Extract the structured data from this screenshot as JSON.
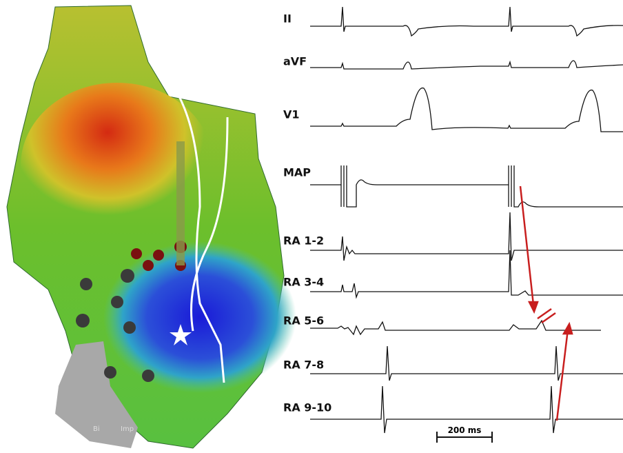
{
  "map": {
    "labels": [
      "Bi",
      "Imp"
    ]
  },
  "traces": {
    "labels": [
      "II",
      "aVF",
      "V1",
      "MAP",
      "RA 1-2",
      "RA 3-4",
      "RA 5-6",
      "RA 7-8",
      "RA 9-10"
    ]
  },
  "scale_bar": {
    "label": "200 ms"
  }
}
